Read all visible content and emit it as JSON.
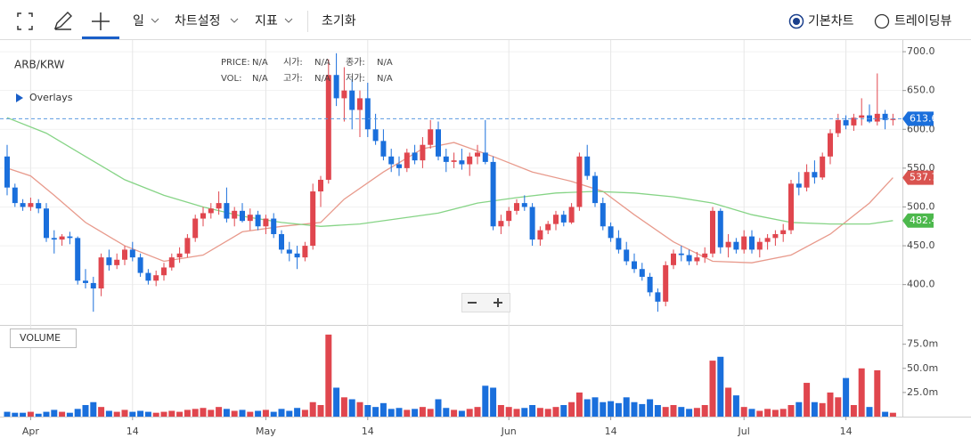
{
  "toolbar": {
    "items": [
      "일",
      "차트설정",
      "지표",
      "초기화"
    ],
    "options": [
      "기본차트",
      "트레이딩뷰"
    ]
  },
  "chart_data": {
    "type": "candlestick",
    "title": "ARB/KRW",
    "info": [
      {
        "label": "PRICE:",
        "value": "N/A"
      },
      {
        "label": "시가:",
        "value": "N/A"
      },
      {
        "label": "종가:",
        "value": "N/A"
      },
      {
        "label": "VOL:",
        "value": "N/A"
      },
      {
        "label": "고가:",
        "value": "N/A"
      },
      {
        "label": "저가:",
        "value": "N/A"
      }
    ],
    "overlays_label": "Overlays",
    "volume_label": "VOLUME",
    "up_color": "#e0464e",
    "down_color": "#1a6fdc",
    "open": [
      565,
      525,
      505,
      500,
      505,
      498,
      460,
      458,
      462,
      460,
      405,
      402,
      395,
      435,
      425,
      432,
      445,
      435,
      415,
      405,
      412,
      422,
      435,
      440,
      460,
      485,
      492,
      498,
      505,
      485,
      495,
      482,
      490,
      475,
      485,
      465,
      445,
      440,
      435,
      450,
      520,
      535,
      670,
      640,
      650,
      625,
      640,
      600,
      585,
      565,
      555,
      550,
      570,
      560,
      580,
      600,
      565,
      558,
      560,
      555,
      565,
      570,
      558,
      475,
      482,
      495,
      505,
      500,
      458,
      470,
      478,
      490,
      480,
      500,
      565,
      540,
      505,
      475,
      460,
      445,
      430,
      420,
      410,
      390,
      378,
      425,
      440,
      438,
      430,
      435,
      440,
      495,
      448,
      455,
      445,
      462,
      445,
      455,
      460,
      465,
      470,
      530,
      525,
      545,
      538,
      565,
      595,
      612,
      605,
      615,
      618,
      610,
      620,
      612
    ],
    "high": [
      580,
      530,
      510,
      512,
      510,
      505,
      470,
      465,
      468,
      462,
      420,
      410,
      440,
      445,
      440,
      450,
      455,
      440,
      420,
      418,
      428,
      440,
      448,
      465,
      490,
      500,
      505,
      520,
      525,
      500,
      505,
      498,
      495,
      490,
      492,
      470,
      455,
      450,
      455,
      530,
      540,
      690,
      698,
      680,
      665,
      650,
      660,
      620,
      600,
      575,
      565,
      575,
      580,
      590,
      612,
      610,
      575,
      570,
      575,
      570,
      580,
      612,
      565,
      490,
      500,
      510,
      515,
      505,
      475,
      482,
      495,
      495,
      505,
      570,
      580,
      545,
      512,
      480,
      470,
      455,
      440,
      428,
      415,
      395,
      430,
      445,
      450,
      445,
      442,
      448,
      500,
      498,
      465,
      460,
      470,
      470,
      460,
      465,
      470,
      478,
      535,
      545,
      555,
      560,
      570,
      600,
      620,
      618,
      620,
      640,
      632,
      672,
      625,
      620
    ],
    "low": [
      515,
      500,
      495,
      495,
      492,
      455,
      440,
      450,
      452,
      400,
      395,
      365,
      385,
      418,
      420,
      425,
      430,
      410,
      400,
      398,
      405,
      418,
      428,
      435,
      455,
      475,
      485,
      490,
      480,
      475,
      480,
      470,
      470,
      465,
      460,
      440,
      430,
      420,
      430,
      445,
      500,
      530,
      630,
      610,
      600,
      590,
      590,
      580,
      560,
      545,
      540,
      545,
      555,
      550,
      575,
      560,
      545,
      550,
      548,
      540,
      555,
      555,
      470,
      465,
      475,
      490,
      495,
      450,
      450,
      465,
      470,
      475,
      478,
      495,
      535,
      500,
      470,
      455,
      440,
      425,
      415,
      405,
      385,
      365,
      372,
      420,
      430,
      425,
      425,
      428,
      435,
      440,
      435,
      440,
      440,
      440,
      435,
      445,
      450,
      455,
      465,
      515,
      520,
      530,
      535,
      555,
      590,
      600,
      598,
      605,
      608,
      605,
      600,
      605
    ],
    "close": [
      525,
      505,
      500,
      505,
      498,
      460,
      458,
      462,
      460,
      405,
      402,
      395,
      435,
      425,
      432,
      445,
      435,
      415,
      405,
      412,
      422,
      435,
      440,
      460,
      485,
      492,
      498,
      505,
      485,
      495,
      482,
      490,
      475,
      485,
      465,
      445,
      440,
      435,
      450,
      520,
      535,
      670,
      640,
      650,
      625,
      640,
      600,
      585,
      565,
      555,
      550,
      570,
      560,
      580,
      600,
      565,
      558,
      560,
      555,
      565,
      570,
      558,
      475,
      482,
      495,
      505,
      500,
      458,
      470,
      478,
      490,
      480,
      500,
      565,
      540,
      505,
      475,
      460,
      445,
      430,
      420,
      410,
      390,
      378,
      425,
      440,
      438,
      430,
      435,
      440,
      495,
      448,
      455,
      445,
      462,
      445,
      455,
      460,
      465,
      470,
      530,
      525,
      545,
      538,
      565,
      595,
      612,
      605,
      615,
      618,
      610,
      620,
      612,
      613.6
    ],
    "volume": [
      5,
      4,
      4,
      5,
      3,
      5,
      7,
      5,
      4,
      8,
      12,
      15,
      10,
      6,
      5,
      7,
      5,
      6,
      5,
      4,
      5,
      6,
      5,
      7,
      8,
      9,
      7,
      10,
      8,
      6,
      7,
      5,
      6,
      7,
      5,
      8,
      6,
      9,
      7,
      15,
      12,
      85,
      30,
      20,
      18,
      15,
      12,
      10,
      14,
      8,
      9,
      7,
      8,
      10,
      8,
      18,
      9,
      7,
      6,
      8,
      10,
      32,
      30,
      12,
      10,
      8,
      9,
      12,
      9,
      8,
      10,
      12,
      15,
      25,
      18,
      20,
      15,
      16,
      14,
      20,
      15,
      13,
      18,
      12,
      10,
      12,
      10,
      8,
      9,
      12,
      58,
      62,
      30,
      22,
      10,
      8,
      6,
      8,
      7,
      8,
      12,
      15,
      35,
      15,
      14,
      25,
      20,
      40,
      12,
      50,
      10,
      48,
      5,
      4
    ],
    "overlays": [
      {
        "color": "#e89a8c",
        "x": [
          0,
          3,
          6,
          10,
          15,
          20,
          25,
          30,
          35,
          40,
          43,
          48,
          53,
          57,
          62,
          67,
          72,
          76,
          80,
          85,
          90,
          95,
          100,
          105,
          110,
          113
        ],
        "values": [
          550,
          540,
          515,
          480,
          450,
          430,
          438,
          468,
          475,
          480,
          510,
          545,
          575,
          583,
          565,
          545,
          533,
          520,
          490,
          455,
          430,
          428,
          438,
          465,
          505,
          537.7
        ]
      },
      {
        "color": "#86d486",
        "x": [
          0,
          5,
          10,
          15,
          20,
          25,
          30,
          35,
          40,
          45,
          50,
          55,
          60,
          65,
          70,
          75,
          80,
          85,
          90,
          95,
          100,
          105,
          110,
          113
        ],
        "values": [
          615,
          595,
          565,
          535,
          515,
          500,
          488,
          480,
          475,
          478,
          485,
          492,
          505,
          512,
          518,
          520,
          518,
          513,
          505,
          490,
          480,
          478,
          478,
          482.4
        ]
      }
    ],
    "last_price_line": true,
    "xticks": [
      {
        "value": 3,
        "label": "Apr"
      },
      {
        "value": 16,
        "label": "14"
      },
      {
        "value": 33,
        "label": "May"
      },
      {
        "value": 46,
        "label": "14"
      },
      {
        "value": 64,
        "label": "Jun"
      },
      {
        "value": 77,
        "label": "14"
      },
      {
        "value": 94,
        "label": "Jul"
      },
      {
        "value": 107,
        "label": "14"
      }
    ],
    "ylim": [
      348,
      715
    ],
    "yticks": [
      {
        "value": 400,
        "label": "400.0"
      },
      {
        "value": 450,
        "label": "450.0"
      },
      {
        "value": 500,
        "label": "500.0"
      },
      {
        "value": 550,
        "label": "550.0"
      },
      {
        "value": 600,
        "label": "600.0"
      },
      {
        "value": 650,
        "label": "650.0"
      },
      {
        "value": 700,
        "label": "700.0"
      }
    ],
    "volume_ylim": [
      0,
      95
    ],
    "volume_ticks": [
      {
        "value": 25,
        "label": "25.0m"
      },
      {
        "value": 50,
        "label": "50.0m"
      },
      {
        "value": 75,
        "label": "75.0m"
      }
    ],
    "grid": true
  }
}
